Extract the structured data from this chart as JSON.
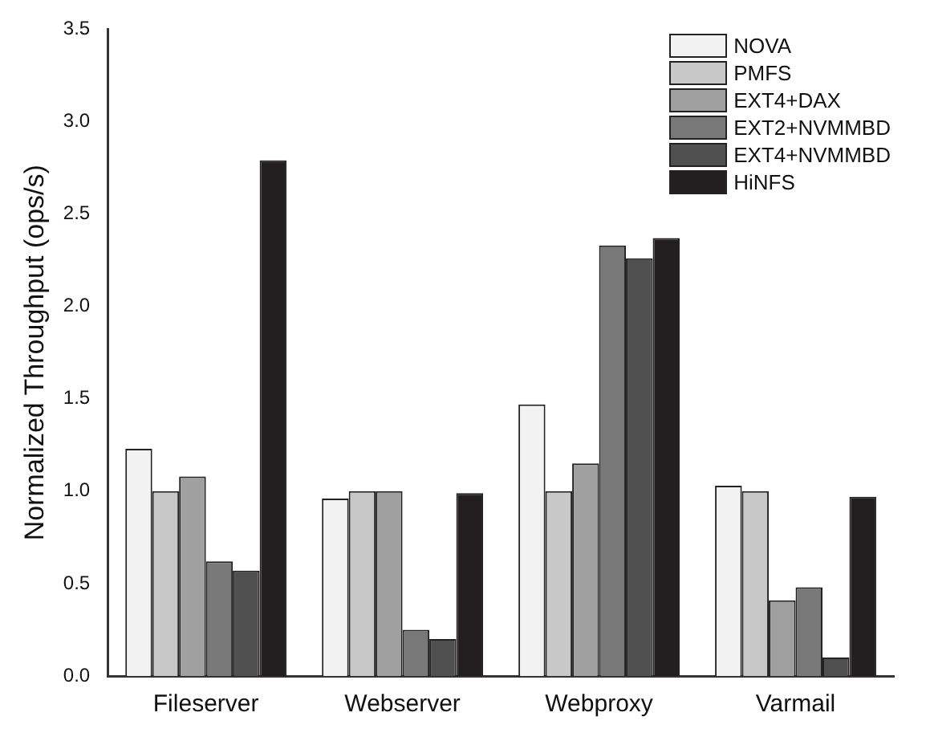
{
  "chart_data": {
    "type": "bar",
    "ylabel": "Normalized Throughput (ops/s)",
    "categories": [
      "Fileserver",
      "Webserver",
      "Webproxy",
      "Varmail"
    ],
    "series": [
      {
        "name": "NOVA",
        "color": "#f2f2f2",
        "values": [
          1.23,
          0.96,
          1.47,
          1.03
        ]
      },
      {
        "name": "PMFS",
        "color": "#c8c8c8",
        "values": [
          1.0,
          1.0,
          1.0,
          1.0
        ]
      },
      {
        "name": "EXT4+DAX",
        "color": "#a0a0a0",
        "values": [
          1.08,
          1.0,
          1.15,
          0.41
        ]
      },
      {
        "name": "EXT2+NVMMBD",
        "color": "#787878",
        "values": [
          0.62,
          0.25,
          2.33,
          0.48
        ]
      },
      {
        "name": "EXT4+NVMMBD",
        "color": "#505050",
        "values": [
          0.57,
          0.2,
          2.26,
          0.1
        ]
      },
      {
        "name": "HiNFS",
        "color": "#231f20",
        "values": [
          2.79,
          0.99,
          2.37,
          0.97
        ]
      }
    ],
    "ylim": [
      0,
      3.5
    ],
    "yticks": [
      {
        "value": 0,
        "label": "0.0"
      },
      {
        "value": 0.5,
        "label": "0.5"
      },
      {
        "value": 1,
        "label": "1.0"
      },
      {
        "value": 1.5,
        "label": "1.5"
      },
      {
        "value": 2,
        "label": "2.0"
      },
      {
        "value": 2.5,
        "label": "2.5"
      },
      {
        "value": 3,
        "label": "3.0"
      },
      {
        "value": 3.5,
        "label": "3.5"
      }
    ],
    "legend": "top right",
    "grid": false
  }
}
